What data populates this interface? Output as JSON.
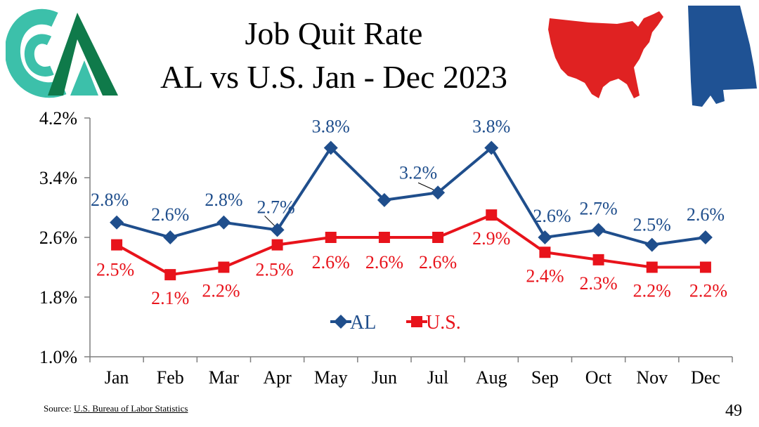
{
  "title": {
    "line1": "Job Quit Rate",
    "line2": "AL vs U.S. Jan - Dec 2023"
  },
  "chart_data": {
    "type": "line",
    "categories": [
      "Jan",
      "Feb",
      "Mar",
      "Apr",
      "May",
      "Jun",
      "Jul",
      "Aug",
      "Sep",
      "Oct",
      "Nov",
      "Dec"
    ],
    "ylim": [
      1.0,
      4.2
    ],
    "yticks": [
      "1.0%",
      "1.8%",
      "2.6%",
      "3.4%",
      "4.2%"
    ],
    "ytick_values": [
      1.0,
      1.8,
      2.6,
      3.4,
      4.2
    ],
    "legend_position": "center",
    "series": [
      {
        "name": "AL",
        "color": "#1f4e8c",
        "marker": "diamond",
        "values": [
          2.8,
          2.6,
          2.8,
          2.7,
          3.8,
          3.1,
          3.2,
          3.8,
          2.6,
          2.7,
          2.5,
          2.6
        ],
        "labels": [
          "2.8%",
          "2.6%",
          "2.8%",
          "2.7%",
          "3.8%",
          "",
          "3.2%",
          "3.8%",
          "2.6%",
          "2.7%",
          "2.5%",
          "2.6%"
        ]
      },
      {
        "name": "U.S.",
        "color": "#e8131b",
        "marker": "square",
        "values": [
          2.5,
          2.1,
          2.2,
          2.5,
          2.6,
          2.6,
          2.6,
          2.9,
          2.4,
          2.3,
          2.2,
          2.2
        ],
        "labels": [
          "2.5%",
          "2.1%",
          "2.2%",
          "2.5%",
          "2.6%",
          "2.6%",
          "2.6%",
          "2.9%",
          "2.4%",
          "2.3%",
          "2.2%",
          "2.2%"
        ]
      }
    ]
  },
  "source": {
    "prefix": "Source: ",
    "link_text": "U.S. Bureau of Labor Statistics"
  },
  "page_number": "49",
  "colors": {
    "logo_teal": "#3cc0aa",
    "logo_green": "#0f7a4a",
    "us_map": "#e02222",
    "al_map": "#1f5294"
  },
  "icons": {
    "logo": "organization-logo-icon",
    "us_map": "us-map-icon",
    "al_map": "alabama-map-icon"
  }
}
